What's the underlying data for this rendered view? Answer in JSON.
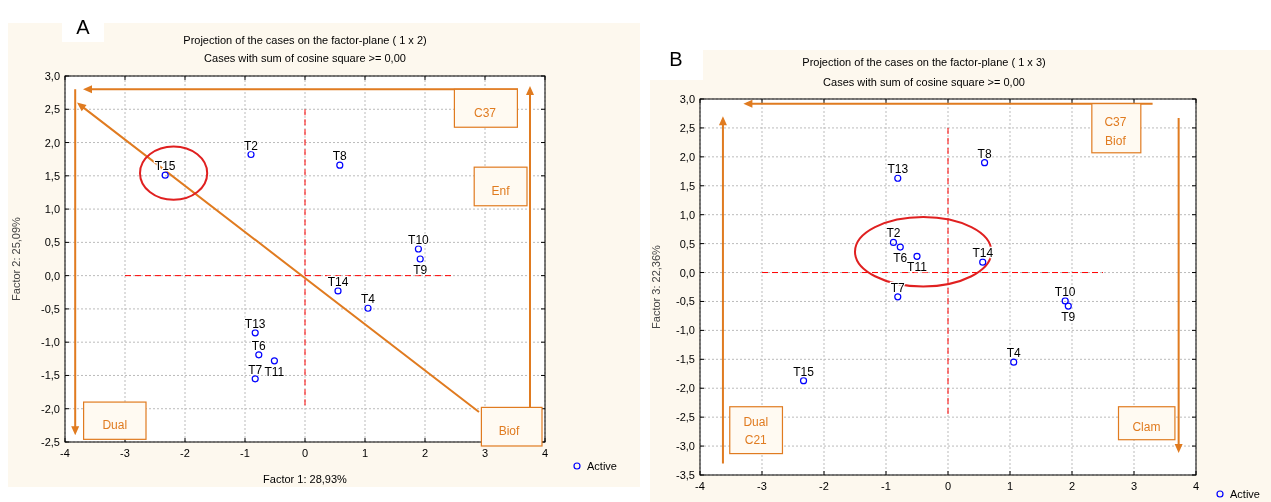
{
  "chart_data": [
    {
      "type": "scatter",
      "title": "Projection of the cases on the factor-plane (  1 x   2)",
      "subtitle": "Cases with sum of cosine square >=  0,00",
      "xlabel": "Factor 1: 28,93%",
      "ylabel": "Factor 2: 25,09%",
      "x": [
        -2.33,
        -0.9,
        0.58,
        1.89,
        1.92,
        0.55,
        1.05,
        -0.83,
        -0.77,
        -0.51,
        -0.83
      ],
      "series": [
        {
          "name": "Active",
          "color": "#0000ff",
          "values": [
            1.51,
            1.82,
            1.66,
            0.4,
            0.25,
            -0.23,
            -0.49,
            -0.86,
            -1.19,
            -1.28,
            -1.55
          ]
        }
      ],
      "xlim": [
        -4,
        4
      ],
      "ylim": [
        -2.5,
        3
      ],
      "xticks": [
        -4,
        -3,
        -2,
        -1,
        0,
        1,
        2,
        3,
        4
      ],
      "yticks": [
        {
          "value": -2.5,
          "label": "-2,5"
        },
        {
          "value": -2,
          "label": "-2,0"
        },
        {
          "value": -1.5,
          "label": "-1,5"
        },
        {
          "value": -1,
          "label": "-1,0"
        },
        {
          "value": -0.5,
          "label": "-0,5"
        },
        {
          "value": 0,
          "label": "0,0"
        },
        {
          "value": 0.5,
          "label": "0,5"
        },
        {
          "value": 1,
          "label": "1,0"
        },
        {
          "value": 1.5,
          "label": "1,5"
        },
        {
          "value": 2,
          "label": "2,0"
        },
        {
          "value": 2.5,
          "label": "2,5"
        },
        {
          "value": 3,
          "label": "3,0"
        }
      ],
      "grid": true,
      "legend": "bottom right",
      "marker": "circle",
      "ref_lines": [
        {
          "axis": "x",
          "value": 0,
          "color": "#ff0000",
          "line_style": "dashed"
        },
        {
          "axis": "y",
          "value": 0,
          "color": "#ff0000",
          "line_style": "dashed"
        }
      ],
      "annotations": [
        "A",
        "C37",
        "Enf",
        "Dual",
        "Biof",
        {
          "text": "T15",
          "x": -2.33,
          "y": 1.51
        },
        {
          "text": "T2",
          "x": -0.9,
          "y": 1.82
        },
        {
          "text": "T8",
          "x": 0.58,
          "y": 1.66
        },
        {
          "text": "T10",
          "x": 1.89,
          "y": 0.4
        },
        {
          "text": "T9",
          "x": 1.92,
          "y": 0.25
        },
        {
          "text": "T14",
          "x": 0.55,
          "y": -0.23
        },
        {
          "text": "T4",
          "x": 1.05,
          "y": -0.49
        },
        {
          "text": "T13",
          "x": -0.83,
          "y": -0.86
        },
        {
          "text": "T6",
          "x": -0.77,
          "y": -1.19
        },
        {
          "text": "T11",
          "x": -0.51,
          "y": -1.28
        },
        {
          "text": "T7",
          "x": -0.83,
          "y": -1.55
        }
      ]
    },
    {
      "type": "scatter",
      "title": "Projection of the cases on the factor-plane (  1 x   3)",
      "subtitle": "Cases with sum of cosine square >=  0,00",
      "ylabel": "Factor 3: 22,36%",
      "x": [
        -0.81,
        0.59,
        -0.88,
        -0.77,
        -0.5,
        0.56,
        -0.81,
        1.89,
        1.94,
        1.06,
        -2.33
      ],
      "series": [
        {
          "name": "Active",
          "color": "#0000ff",
          "values": [
            1.63,
            1.9,
            0.52,
            0.44,
            0.28,
            0.18,
            -0.42,
            -0.49,
            -0.58,
            -1.55,
            -1.87
          ]
        }
      ],
      "xlim": [
        -4,
        4
      ],
      "ylim": [
        -3.5,
        3
      ],
      "xticks": [
        -4,
        -3,
        -2,
        -1,
        0,
        1,
        2,
        3,
        4
      ],
      "yticks": [
        {
          "value": -3.5,
          "label": "-3,5"
        },
        {
          "value": -3,
          "label": "-3,0"
        },
        {
          "value": -2.5,
          "label": "-2,5"
        },
        {
          "value": -2,
          "label": "-2,0"
        },
        {
          "value": -1.5,
          "label": "-1,5"
        },
        {
          "value": -1,
          "label": "-1,0"
        },
        {
          "value": -0.5,
          "label": "-0,5"
        },
        {
          "value": 0,
          "label": "0,0"
        },
        {
          "value": 0.5,
          "label": "0,5"
        },
        {
          "value": 1,
          "label": "1,0"
        },
        {
          "value": 1.5,
          "label": "1,5"
        },
        {
          "value": 2,
          "label": "2,0"
        },
        {
          "value": 2.5,
          "label": "2,5"
        },
        {
          "value": 3,
          "label": "3,0"
        }
      ],
      "grid": true,
      "legend": "bottom right",
      "marker": "circle",
      "ref_lines": [
        {
          "axis": "x",
          "value": 0,
          "color": "#ff0000",
          "line_style": "dashed"
        },
        {
          "axis": "y",
          "value": 0,
          "color": "#ff0000",
          "line_style": "dashed"
        }
      ],
      "annotations": [
        "B",
        "C37",
        "Biof",
        "Dual",
        "C21",
        "Clam",
        {
          "text": "T13",
          "x": -0.81,
          "y": 1.63
        },
        {
          "text": "T8",
          "x": 0.59,
          "y": 1.9
        },
        {
          "text": "T2",
          "x": -0.88,
          "y": 0.52
        },
        {
          "text": "T6",
          "x": -0.77,
          "y": 0.44
        },
        {
          "text": "T11",
          "x": -0.5,
          "y": 0.28
        },
        {
          "text": "T14",
          "x": 0.56,
          "y": 0.18
        },
        {
          "text": "T7",
          "x": -0.81,
          "y": -0.42
        },
        {
          "text": "T10",
          "x": 1.89,
          "y": -0.49
        },
        {
          "text": "T9",
          "x": 1.94,
          "y": -0.58
        },
        {
          "text": "T4",
          "x": 1.06,
          "y": -1.55
        },
        {
          "text": "T15",
          "x": -2.33,
          "y": -1.87
        }
      ]
    }
  ]
}
